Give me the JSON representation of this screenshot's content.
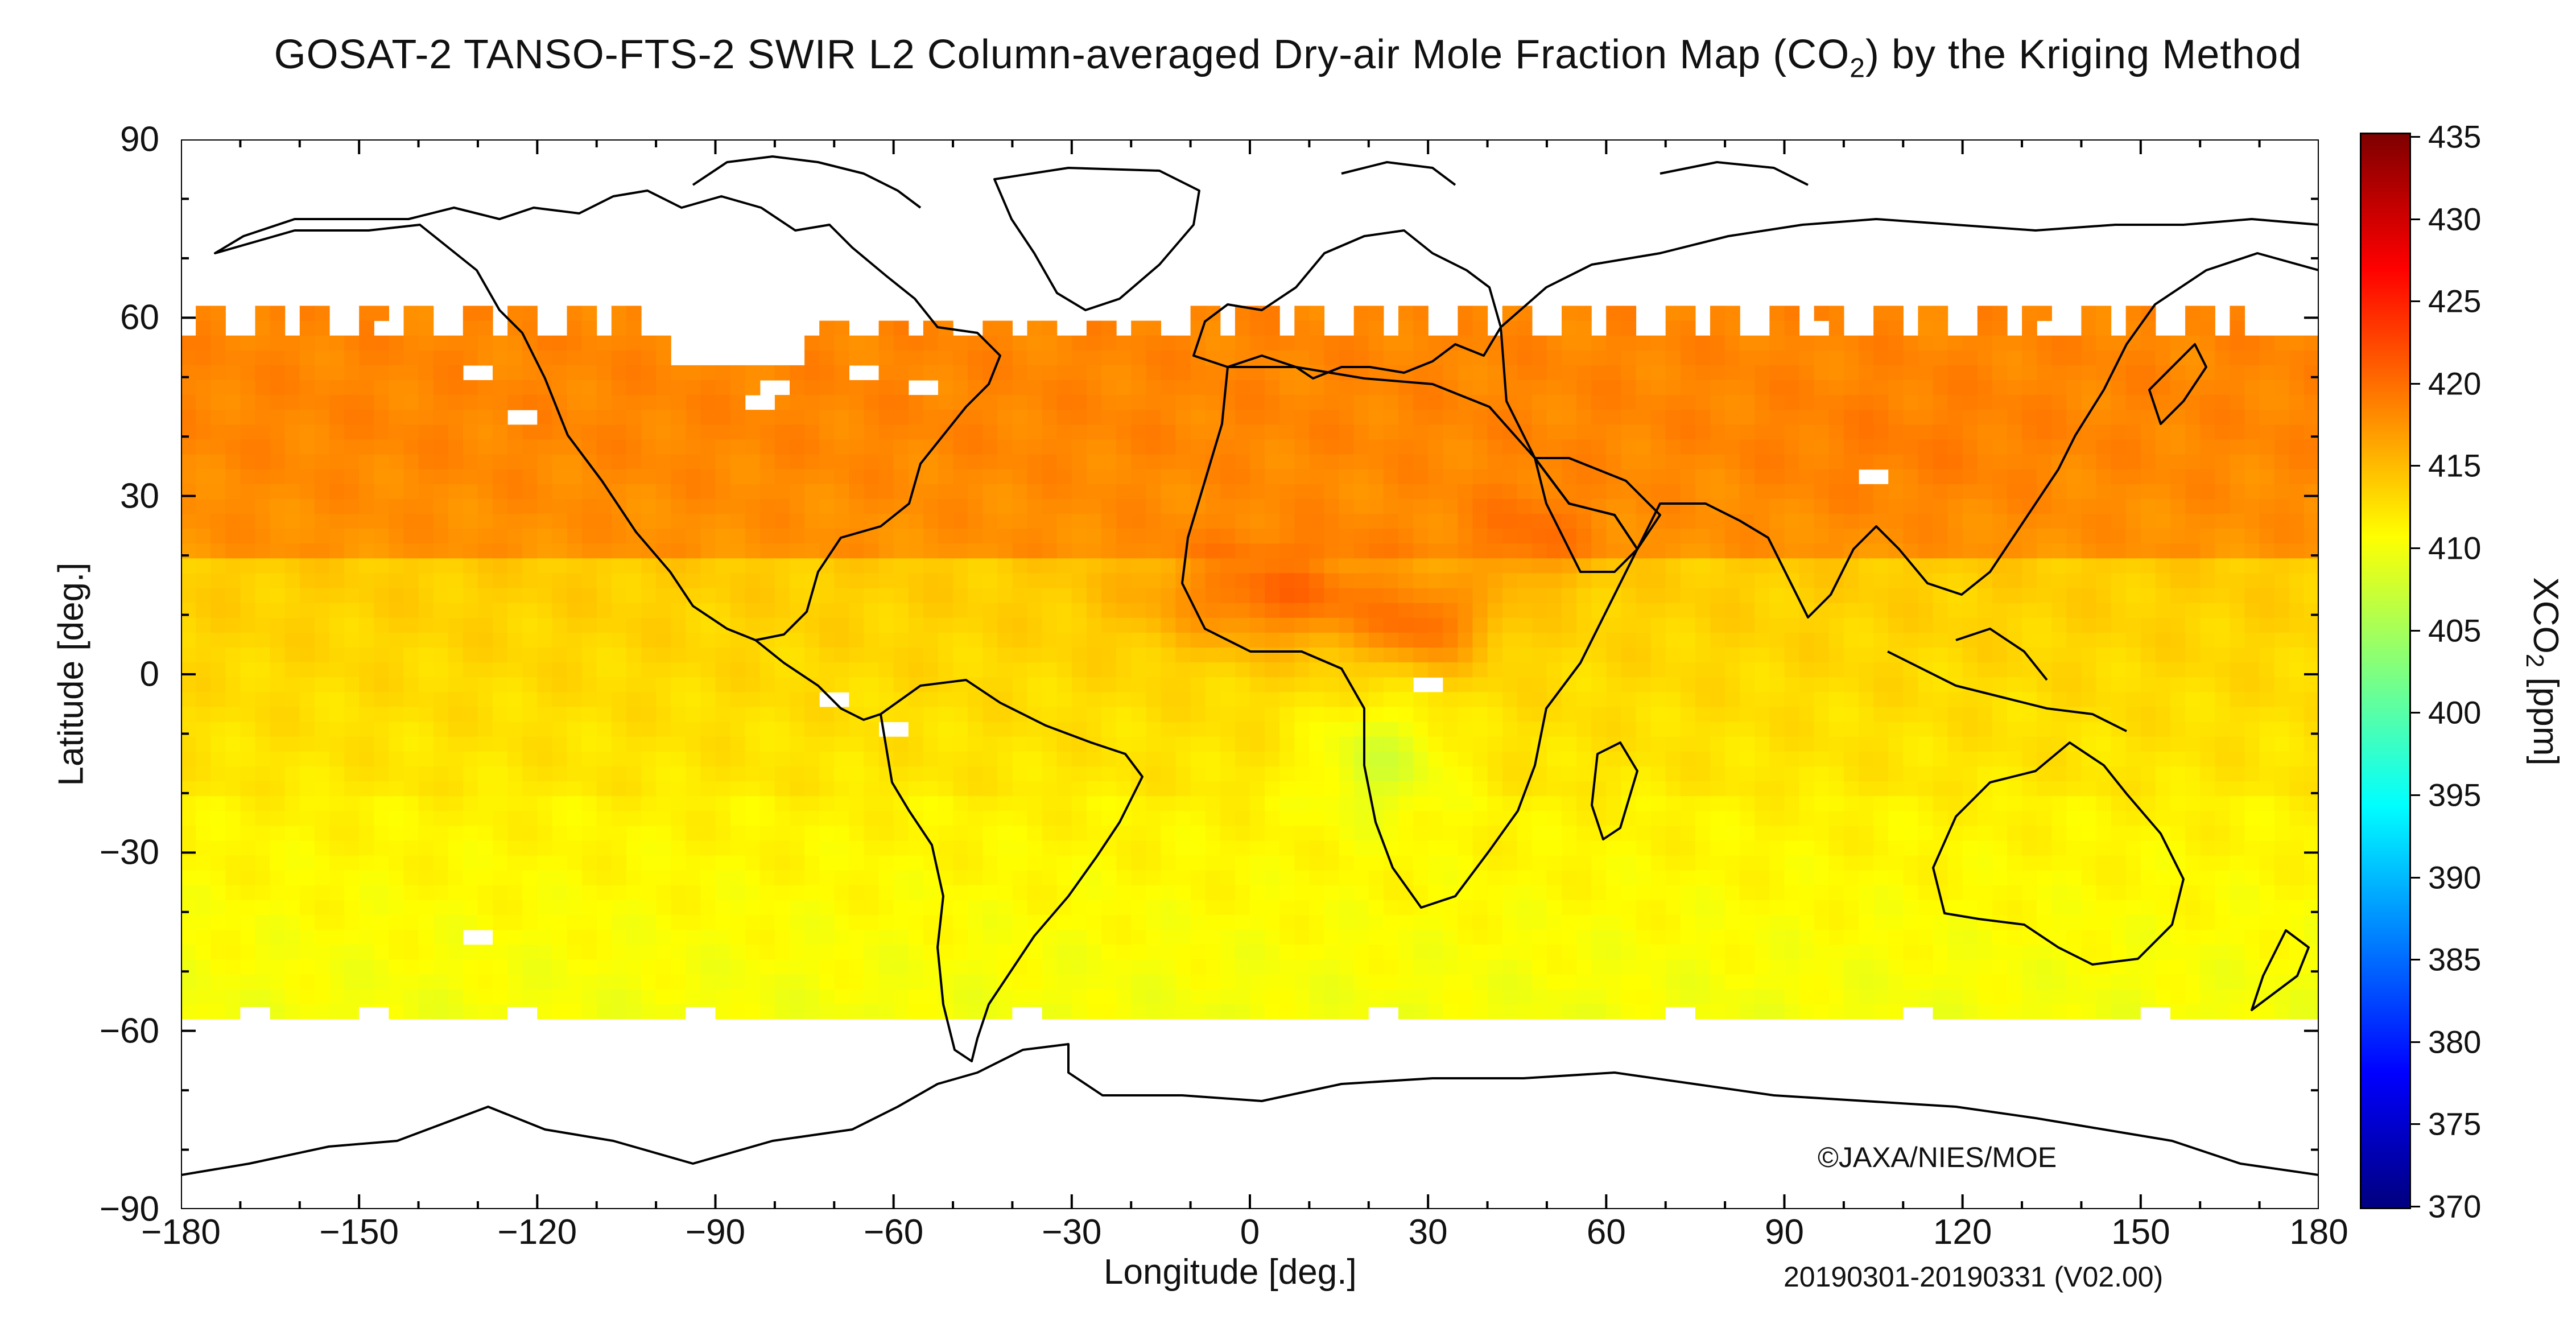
{
  "title": {
    "before": "GOSAT-2 TANSO-FTS-2 SWIR L2 Column-averaged Dry-air Mole Fraction Map (CO",
    "subscript": "2",
    "after": ") by the Kriging Method"
  },
  "axes": {
    "x_title": "Longitude [deg.]",
    "y_title": "Latitude [deg.]",
    "x_ticks": [
      "−180",
      "−150",
      "−120",
      "−90",
      "−60",
      "−30",
      "0",
      "30",
      "60",
      "90",
      "120",
      "150",
      "180"
    ],
    "y_ticks": [
      "90",
      "60",
      "30",
      "0",
      "−30",
      "−60",
      "−90"
    ]
  },
  "colorbar": {
    "title_before": "XCO",
    "title_subscript": "2",
    "title_after": " [ppm]",
    "labels": [
      "435",
      "430",
      "425",
      "420",
      "415",
      "410",
      "405",
      "400",
      "395",
      "390",
      "385",
      "380",
      "375",
      "370"
    ]
  },
  "credit": "©JAXA/NIES/MOE",
  "period": "20190301-20190331 (V02.00)",
  "colors": {
    "scale_stops": [
      "#00007f",
      "#0000ff",
      "#007fff",
      "#00ffff",
      "#7fff7f",
      "#ffff00",
      "#ff7f00",
      "#ff0000",
      "#7f0000"
    ],
    "coastline": "#000000",
    "no_data": "#ffffff"
  },
  "map_data": {
    "projection": "equirectangular",
    "lon_range": [
      -180,
      180
    ],
    "lat_range": [
      -90,
      90
    ],
    "value_unit": "ppm",
    "value_range": [
      370,
      435
    ],
    "data_lat_coverage": [
      -56,
      62
    ],
    "regional_values": [
      {
        "region": "northern mid-latitudes",
        "value": 418
      },
      {
        "region": "North Africa / Sahel",
        "value": 421
      },
      {
        "region": "Arabian Peninsula",
        "value": 420
      },
      {
        "region": "East Asia",
        "value": 419
      },
      {
        "region": "tropics",
        "value": 414
      },
      {
        "region": "southern Africa",
        "value": 408
      },
      {
        "region": "Southern Ocean",
        "value": 410
      }
    ]
  }
}
